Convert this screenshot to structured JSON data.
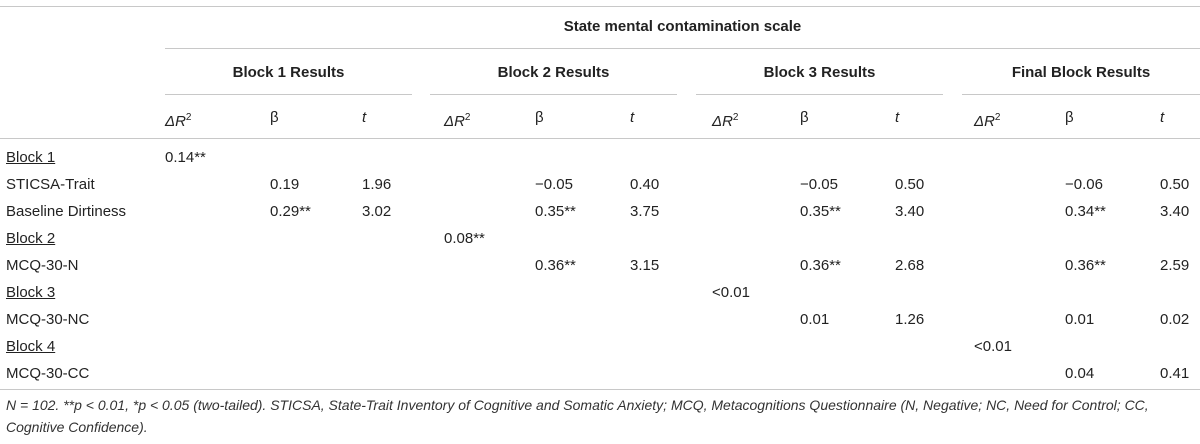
{
  "table": {
    "main_header": "State mental contamination scale",
    "blocks": [
      "Block 1 Results",
      "Block 2 Results",
      "Block 3 Results",
      "Final Block Results"
    ],
    "subheaders": {
      "delta": "ΔR",
      "sup": "2",
      "beta": "β",
      "t": "t"
    },
    "rows": [
      {
        "label": "Block 1",
        "underline": true,
        "cells": [
          "0.14**",
          "",
          "",
          "",
          "",
          "",
          "",
          "",
          "",
          "",
          "",
          ""
        ]
      },
      {
        "label": "STICSA-Trait",
        "underline": false,
        "cells": [
          "",
          "0.19",
          "1.96",
          "",
          "−0.05",
          "0.40",
          "",
          "−0.05",
          "0.50",
          "",
          "−0.06",
          "0.50"
        ]
      },
      {
        "label": "Baseline Dirtiness",
        "underline": false,
        "cells": [
          "",
          "0.29**",
          "3.02",
          "",
          "0.35**",
          "3.75",
          "",
          "0.35**",
          "3.40",
          "",
          "0.34**",
          "3.40"
        ]
      },
      {
        "label": "Block 2",
        "underline": true,
        "cells": [
          "",
          "",
          "",
          "0.08**",
          "",
          "",
          "",
          "",
          "",
          "",
          "",
          ""
        ]
      },
      {
        "label": "MCQ-30-N",
        "underline": false,
        "cells": [
          "",
          "",
          "",
          "",
          "0.36**",
          "3.15",
          "",
          "0.36**",
          "2.68",
          "",
          "0.36**",
          "2.59"
        ]
      },
      {
        "label": "Block 3",
        "underline": true,
        "cells": [
          "",
          "",
          "",
          "",
          "",
          "",
          "<0.01",
          "",
          "",
          "",
          "",
          ""
        ]
      },
      {
        "label": "MCQ-30-NC",
        "underline": false,
        "cells": [
          "",
          "",
          "",
          "",
          "",
          "",
          "",
          "0.01",
          "1.26",
          "",
          "0.01",
          "0.02"
        ]
      },
      {
        "label": "Block 4",
        "underline": true,
        "cells": [
          "",
          "",
          "",
          "",
          "",
          "",
          "",
          "",
          "",
          "<0.01",
          "",
          ""
        ]
      },
      {
        "label": "MCQ-30-CC",
        "underline": false,
        "cells": [
          "",
          "",
          "",
          "",
          "",
          "",
          "",
          "",
          "",
          "",
          "0.04",
          "0.41"
        ]
      }
    ]
  },
  "footnote": "N = 102. **p < 0.01, *p < 0.05 (two-tailed). STICSA, State-Trait Inventory of Cognitive and Somatic Anxiety; MCQ, Metacognitions Questionnaire (N, Negative; NC, Need for Control; CC, Cognitive Confidence)."
}
